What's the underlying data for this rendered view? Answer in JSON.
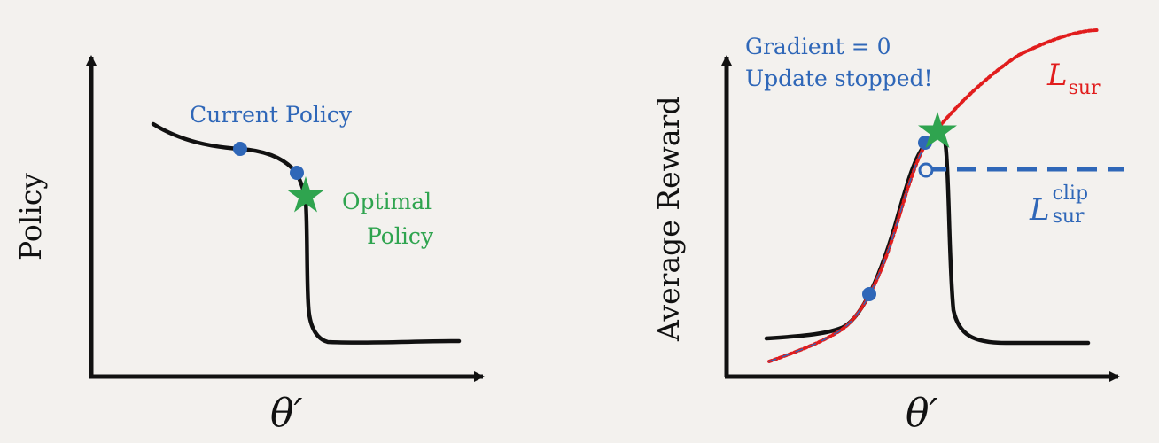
{
  "left_panel": {
    "y_axis_label": "Policy",
    "x_axis_label": "θ′",
    "current_policy_label": "Current Policy",
    "optimal_policy_label_line1": "Optimal",
    "optimal_policy_label_line2": "Policy"
  },
  "right_panel": {
    "y_axis_label": "Average Reward",
    "x_axis_label": "θ′",
    "gradient_label": "Gradient = 0",
    "update_stopped_label": "Update stopped!",
    "surrogate_label_main": "L",
    "surrogate_label_sub": "sur",
    "clip_label_main": "L",
    "clip_label_sub": "sur",
    "clip_label_sup": "clip"
  },
  "colors": {
    "background": "#f3f1ee",
    "axis": "#111111",
    "curve": "#111111",
    "current_point": "#2f67b8",
    "optimal_marker": "#2fa44f",
    "surrogate": "#e11d1d",
    "clip": "#2f67b8"
  }
}
